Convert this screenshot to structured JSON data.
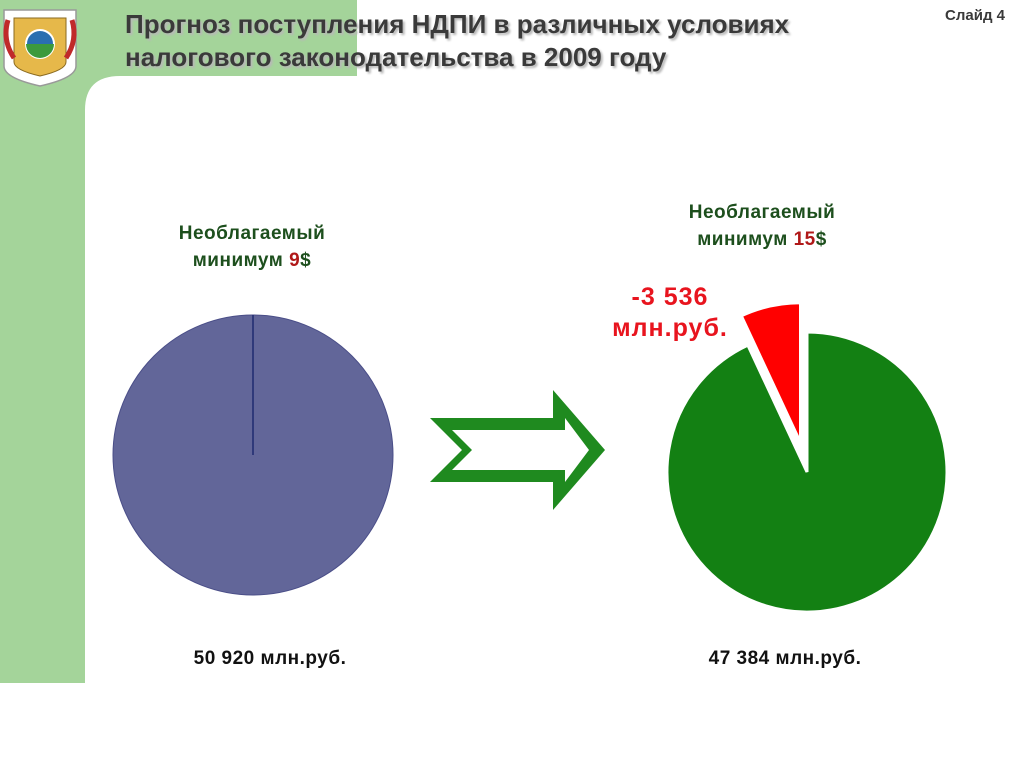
{
  "slide_label": "Слайд 4",
  "title": [
    "Прогноз поступления НДПИ в различных условиях",
    "налогового законодательства в 2009 году"
  ],
  "chart_data": [
    {
      "type": "pie",
      "title": [
        "Необлагаемый",
        "минимум",
        "9",
        "$"
      ],
      "values": [
        50920
      ],
      "value_labels": [
        "50 920 млн.руб."
      ],
      "colors": [
        "#626699"
      ],
      "explode": [
        false
      ]
    },
    {
      "type": "pie",
      "title": [
        "Необлагаемый",
        "минимум",
        "15",
        "$"
      ],
      "values": [
        47384,
        -3536
      ],
      "value_labels": [
        "47 384 млн.руб.",
        "-3 536 млн.руб."
      ],
      "colors": [
        "#138013",
        "#ff0000"
      ],
      "explode": [
        false,
        true
      ]
    }
  ]
}
